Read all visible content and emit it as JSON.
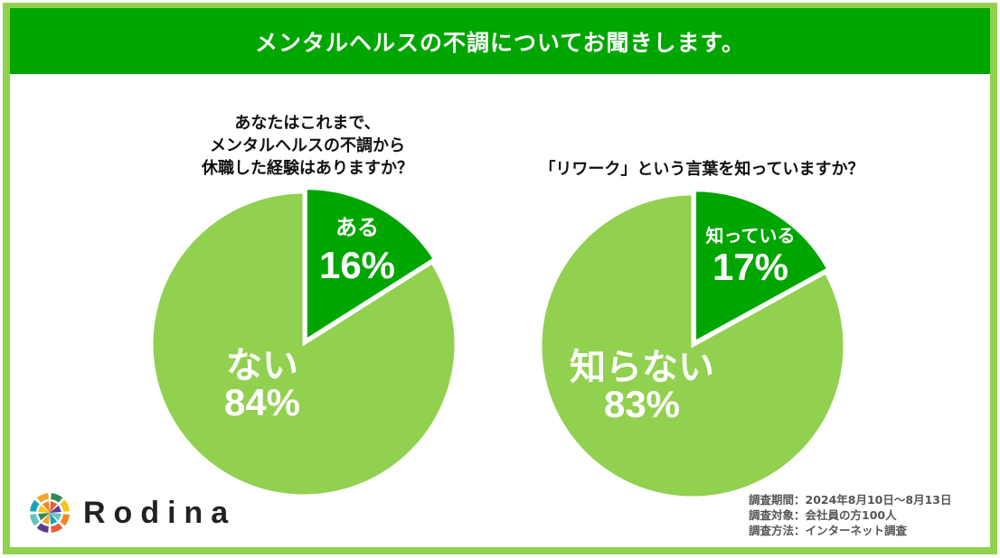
{
  "header": {
    "title": "メンタルヘルスの不調についてお聞きします。"
  },
  "chart_data": [
    {
      "type": "pie",
      "title": "あなたはこれまで、\nメンタルヘルスの不調から\n休職した経験はありますか？",
      "title_lines": [
        "あなたはこれまで、",
        "メンタルヘルスの不調から",
        "休職した経験はありますか？"
      ],
      "slices": [
        {
          "label": "ある",
          "value": 16,
          "display": "16%",
          "color": "#00A600"
        },
        {
          "label": "ない",
          "value": 84,
          "display": "84%",
          "color": "#92D050"
        }
      ]
    },
    {
      "type": "pie",
      "title": "「リワーク」という言葉を知っていますか？",
      "title_lines": [
        "「リワーク」という言葉を知っていますか？"
      ],
      "slices": [
        {
          "label": "知っている",
          "value": 17,
          "display": "17%",
          "color": "#00A600"
        },
        {
          "label": "知らない",
          "value": 83,
          "display": "83%",
          "color": "#92D050"
        }
      ]
    }
  ],
  "survey": {
    "period": "調査期間：2024年8月10日～8月13日",
    "target": "調査対象：会社員の方100人",
    "method": "調査方法：インターネット調査"
  },
  "logo": {
    "name": "Rodina"
  }
}
